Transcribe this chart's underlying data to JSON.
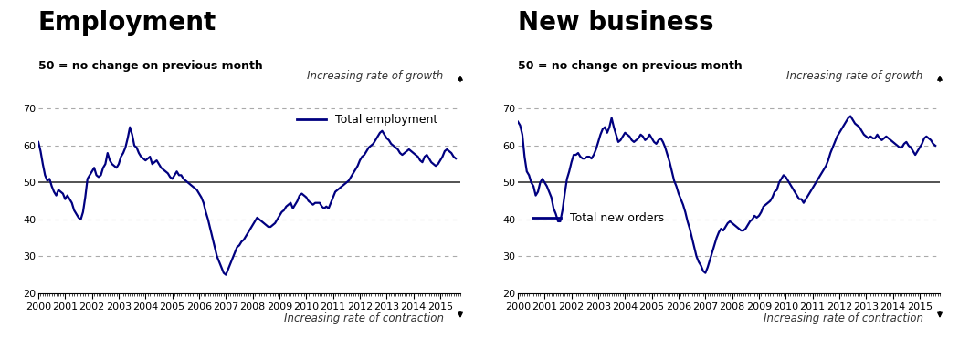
{
  "title1": "Employment",
  "title2": "New business",
  "subtitle": "50 = no change on previous month",
  "label1": "Total employment",
  "label2": "Total new orders",
  "annotation_growth": "Increasing rate of growth",
  "annotation_contraction": "Increasing rate of contraction",
  "ylim": [
    20,
    73
  ],
  "yticks": [
    20,
    30,
    40,
    50,
    60,
    70
  ],
  "line_color": "#000080",
  "ref_line_color": "#444444",
  "grid_color": "#aaaaaa",
  "bg_color": "#ffffff",
  "title_fontsize": 20,
  "subtitle_fontsize": 9,
  "tick_fontsize": 8,
  "annot_fontsize": 8.5,
  "legend_fontsize": 9,
  "employment": [
    61.0,
    58.5,
    55.0,
    52.0,
    50.5,
    51.0,
    49.0,
    47.5,
    46.5,
    48.0,
    47.5,
    47.0,
    45.5,
    46.5,
    45.5,
    44.5,
    42.5,
    41.5,
    40.5,
    40.0,
    42.0,
    46.0,
    51.0,
    52.0,
    53.0,
    54.0,
    52.0,
    51.5,
    52.0,
    54.0,
    55.0,
    58.0,
    56.0,
    55.0,
    54.5,
    54.0,
    55.0,
    57.0,
    58.0,
    59.5,
    62.0,
    65.0,
    63.0,
    60.0,
    59.5,
    58.0,
    57.0,
    56.5,
    56.0,
    56.5,
    57.0,
    55.0,
    55.5,
    56.0,
    55.0,
    54.0,
    53.5,
    53.0,
    52.5,
    51.5,
    51.0,
    52.0,
    53.0,
    52.0,
    52.0,
    51.0,
    50.5,
    50.0,
    49.5,
    49.0,
    48.5,
    48.0,
    47.0,
    46.0,
    44.5,
    42.0,
    40.0,
    37.5,
    35.0,
    32.5,
    30.0,
    28.5,
    27.0,
    25.5,
    25.0,
    26.5,
    28.0,
    29.5,
    31.0,
    32.5,
    33.0,
    34.0,
    34.5,
    35.5,
    36.5,
    37.5,
    38.5,
    39.5,
    40.5,
    40.0,
    39.5,
    39.0,
    38.5,
    38.0,
    38.0,
    38.5,
    39.0,
    40.0,
    41.0,
    42.0,
    42.5,
    43.5,
    44.0,
    44.5,
    43.0,
    44.0,
    45.0,
    46.5,
    47.0,
    46.5,
    46.0,
    45.0,
    44.5,
    44.0,
    44.5,
    44.5,
    44.5,
    43.5,
    43.0,
    43.5,
    43.0,
    44.5,
    46.0,
    47.5,
    48.0,
    48.5,
    49.0,
    49.5,
    50.0,
    50.5,
    51.5,
    52.5,
    53.5,
    54.5,
    56.0,
    57.0,
    57.5,
    58.5,
    59.5,
    60.0,
    60.5,
    61.5,
    62.5,
    63.5,
    64.0,
    63.0,
    62.0,
    61.5,
    60.5,
    60.0,
    59.5,
    59.0,
    58.0,
    57.5,
    58.0,
    58.5,
    59.0,
    58.5,
    58.0,
    57.5,
    57.0,
    56.0,
    55.5,
    57.0,
    57.5,
    56.5,
    55.5,
    55.0,
    54.5,
    55.0,
    56.0,
    57.0,
    58.5,
    59.0,
    58.5,
    58.0,
    57.0,
    56.5
  ],
  "new_business": [
    66.5,
    65.5,
    63.0,
    57.0,
    53.0,
    52.0,
    50.0,
    49.0,
    46.5,
    47.5,
    50.0,
    51.0,
    50.0,
    49.0,
    47.5,
    46.0,
    43.0,
    41.5,
    39.5,
    39.5,
    42.5,
    47.0,
    51.0,
    53.0,
    55.5,
    57.5,
    57.5,
    58.0,
    57.0,
    56.5,
    56.5,
    57.0,
    57.0,
    56.5,
    57.5,
    59.0,
    61.0,
    63.0,
    64.5,
    65.0,
    63.5,
    65.0,
    67.5,
    65.0,
    63.0,
    61.0,
    61.5,
    62.5,
    63.5,
    63.0,
    62.5,
    61.5,
    61.0,
    61.5,
    62.0,
    63.0,
    62.5,
    61.5,
    62.0,
    63.0,
    62.0,
    61.0,
    60.5,
    61.5,
    62.0,
    61.0,
    59.5,
    57.5,
    55.5,
    53.0,
    50.5,
    49.0,
    47.0,
    45.5,
    44.0,
    42.0,
    39.5,
    37.5,
    35.0,
    32.5,
    30.0,
    28.5,
    27.5,
    26.0,
    25.5,
    27.0,
    29.0,
    31.0,
    33.0,
    35.0,
    36.5,
    37.5,
    37.0,
    38.0,
    39.0,
    39.5,
    39.0,
    38.5,
    38.0,
    37.5,
    37.0,
    37.0,
    37.5,
    38.5,
    39.5,
    40.0,
    41.0,
    40.5,
    41.0,
    42.0,
    43.5,
    44.0,
    44.5,
    45.0,
    46.0,
    47.5,
    48.0,
    50.0,
    51.0,
    52.0,
    51.5,
    50.5,
    49.5,
    48.5,
    47.5,
    46.5,
    45.5,
    45.5,
    44.5,
    45.5,
    46.5,
    47.5,
    48.5,
    49.5,
    50.5,
    51.5,
    52.5,
    53.5,
    54.5,
    56.0,
    58.0,
    59.5,
    61.0,
    62.5,
    63.5,
    64.5,
    65.5,
    66.5,
    67.5,
    68.0,
    67.0,
    66.0,
    65.5,
    65.0,
    64.0,
    63.0,
    62.5,
    62.0,
    62.5,
    62.0,
    62.0,
    63.0,
    62.0,
    61.5,
    62.0,
    62.5,
    62.0,
    61.5,
    61.0,
    60.5,
    60.0,
    59.5,
    59.5,
    60.5,
    61.0,
    60.0,
    59.5,
    58.5,
    57.5,
    58.5,
    59.5,
    60.5,
    62.0,
    62.5,
    62.0,
    61.5,
    60.5,
    60.0
  ]
}
